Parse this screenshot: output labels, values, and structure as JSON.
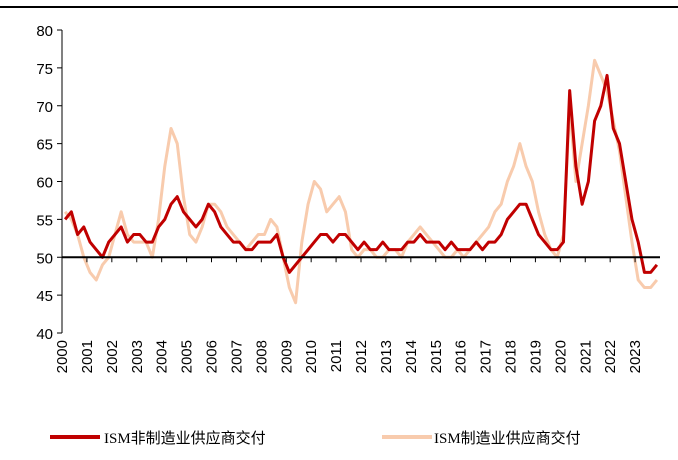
{
  "chart_data": {
    "type": "line",
    "x": [
      2000.125,
      2000.375,
      2000.625,
      2000.875,
      2001.125,
      2001.375,
      2001.625,
      2001.875,
      2002.125,
      2002.375,
      2002.625,
      2002.875,
      2003.125,
      2003.375,
      2003.625,
      2003.875,
      2004.125,
      2004.375,
      2004.625,
      2004.875,
      2005.125,
      2005.375,
      2005.625,
      2005.875,
      2006.125,
      2006.375,
      2006.625,
      2006.875,
      2007.125,
      2007.375,
      2007.625,
      2007.875,
      2008.125,
      2008.375,
      2008.625,
      2008.875,
      2009.125,
      2009.375,
      2009.625,
      2009.875,
      2010.125,
      2010.375,
      2010.625,
      2010.875,
      2011.125,
      2011.375,
      2011.625,
      2011.875,
      2012.125,
      2012.375,
      2012.625,
      2012.875,
      2013.125,
      2013.375,
      2013.625,
      2013.875,
      2014.125,
      2014.375,
      2014.625,
      2014.875,
      2015.125,
      2015.375,
      2015.625,
      2015.875,
      2016.125,
      2016.375,
      2016.625,
      2016.875,
      2017.125,
      2017.375,
      2017.625,
      2017.875,
      2018.125,
      2018.375,
      2018.625,
      2018.875,
      2019.125,
      2019.375,
      2019.625,
      2019.875,
      2020.125,
      2020.375,
      2020.625,
      2020.875,
      2021.125,
      2021.375,
      2021.625,
      2021.875,
      2022.125,
      2022.375,
      2022.625,
      2022.875,
      2023.125,
      2023.375,
      2023.625,
      2023.875
    ],
    "series": [
      {
        "name": "ISM非制造业供应商交付",
        "color": "#c00000",
        "values": [
          55,
          56,
          53,
          54,
          52,
          51,
          50,
          52,
          53,
          54,
          52,
          53,
          53,
          52,
          52,
          54,
          55,
          57,
          58,
          56,
          55,
          54,
          55,
          57,
          56,
          54,
          53,
          52,
          52,
          51,
          51,
          52,
          52,
          52,
          53,
          50,
          48,
          49,
          50,
          51,
          52,
          53,
          53,
          52,
          53,
          53,
          52,
          51,
          52,
          51,
          51,
          52,
          51,
          51,
          51,
          52,
          52,
          53,
          52,
          52,
          52,
          51,
          52,
          51,
          51,
          51,
          52,
          51,
          52,
          52,
          53,
          55,
          56,
          57,
          57,
          55,
          53,
          52,
          51,
          51,
          52,
          72,
          62,
          57,
          60,
          68,
          70,
          74,
          67,
          65,
          60,
          55,
          52,
          48,
          48,
          49
        ]
      },
      {
        "name": "ISM制造业供应商交付",
        "color": "#f8cbad",
        "values": [
          56,
          55,
          53,
          50,
          48,
          47,
          49,
          50,
          53,
          56,
          53,
          52,
          52,
          52,
          50,
          55,
          62,
          67,
          65,
          58,
          53,
          52,
          54,
          57,
          57,
          56,
          54,
          53,
          52,
          51,
          52,
          53,
          53,
          55,
          54,
          50,
          46,
          44,
          52,
          57,
          60,
          59,
          56,
          57,
          58,
          56,
          51,
          50,
          51,
          51,
          50,
          50,
          51,
          51,
          50,
          52,
          53,
          54,
          53,
          52,
          51,
          50,
          50,
          51,
          50,
          51,
          52,
          53,
          54,
          56,
          57,
          60,
          62,
          65,
          62,
          60,
          56,
          53,
          51,
          50,
          53,
          70,
          60,
          65,
          70,
          76,
          74,
          72,
          68,
          64,
          58,
          52,
          47,
          46,
          46,
          47
        ]
      }
    ],
    "xlim": [
      2000,
      2024
    ],
    "xticks": [
      2000,
      2001,
      2002,
      2003,
      2004,
      2005,
      2006,
      2007,
      2008,
      2009,
      2010,
      2011,
      2012,
      2013,
      2014,
      2015,
      2016,
      2017,
      2018,
      2019,
      2020,
      2021,
      2022,
      2023
    ],
    "ylim": [
      40,
      80
    ],
    "yticks": [
      40,
      45,
      50,
      55,
      60,
      65,
      70,
      75,
      80
    ],
    "baseline": 50
  }
}
